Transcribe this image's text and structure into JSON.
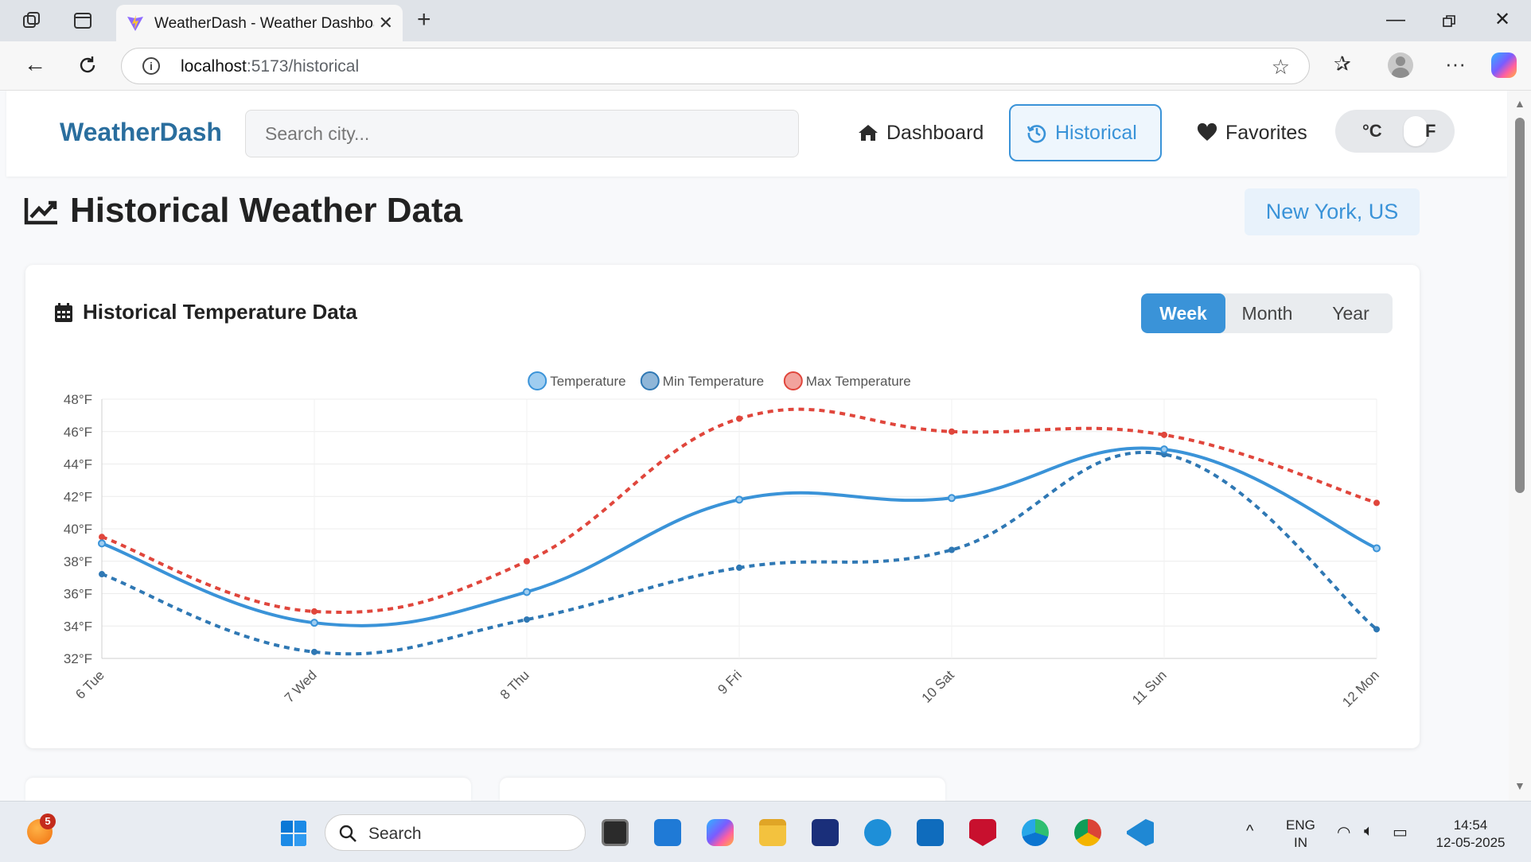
{
  "browser": {
    "tab_title": "WeatherDash - Weather Dashboard",
    "url_host": "localhost",
    "url_path": ":5173/historical"
  },
  "app": {
    "brand": "WeatherDash",
    "search_placeholder": "Search city...",
    "nav": [
      {
        "label": "Dashboard",
        "icon": "home-icon",
        "active": false
      },
      {
        "label": "Historical",
        "icon": "history-icon",
        "active": true
      },
      {
        "label": "Favorites",
        "icon": "heart-icon",
        "active": false
      }
    ],
    "unit_toggle": {
      "celsius": "°C",
      "fahrenheit": "F",
      "selected": "F"
    },
    "page_title": "Historical Weather Data",
    "location": "New York, US",
    "card_title": "Historical Temperature Data",
    "ranges": [
      "Week",
      "Month",
      "Year"
    ],
    "selected_range": "Week"
  },
  "chart_data": {
    "type": "line",
    "categories": [
      "6 Tue",
      "7 Wed",
      "8 Thu",
      "9 Fri",
      "10 Sat",
      "11 Sun",
      "12 Mon"
    ],
    "series": [
      {
        "name": "Temperature",
        "color": "#3a93d8",
        "dashed": false,
        "values": [
          39.1,
          34.2,
          36.1,
          41.8,
          41.9,
          44.9,
          38.8
        ]
      },
      {
        "name": "Min Temperature",
        "color": "#2f78b4",
        "dashed": true,
        "values": [
          37.2,
          32.4,
          34.4,
          37.6,
          38.7,
          44.6,
          33.8
        ]
      },
      {
        "name": "Max Temperature",
        "color": "#e0463c",
        "dashed": true,
        "values": [
          39.5,
          34.9,
          38.0,
          46.8,
          46.0,
          45.8,
          41.6
        ]
      }
    ],
    "legend": [
      {
        "label": "Temperature",
        "fill": "#9fcdf0",
        "stroke": "#3a93d8"
      },
      {
        "label": "Min Temperature",
        "fill": "#8fb6d8",
        "stroke": "#2f78b4"
      },
      {
        "label": "Max Temperature",
        "fill": "#f2a39d",
        "stroke": "#e0463c"
      }
    ],
    "y_ticks": [
      "48°F",
      "46°F",
      "44°F",
      "42°F",
      "40°F",
      "38°F",
      "36°F",
      "34°F",
      "32°F"
    ],
    "ylim": [
      32,
      48
    ],
    "legend_position": "top-center",
    "grid": true
  },
  "taskbar": {
    "search_label": "Search",
    "notification_count": "5",
    "lang_line1": "ENG",
    "lang_line2": "IN",
    "time": "14:54",
    "date": "12-05-2025"
  }
}
